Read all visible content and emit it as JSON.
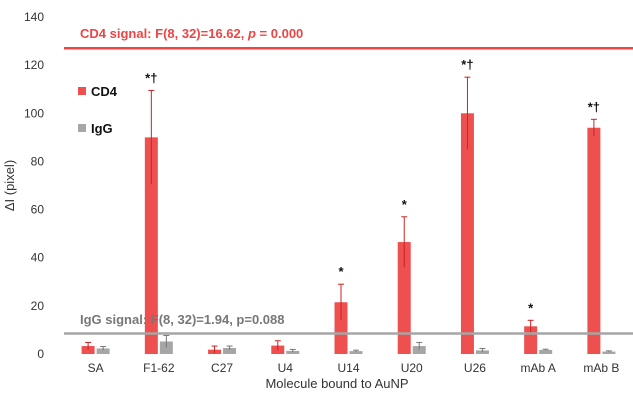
{
  "chart_data": {
    "type": "bar",
    "xlabel": "Molecule bound to AuNP",
    "ylabel": "ΔI (pixel)",
    "ylim": [
      0,
      140
    ],
    "yticks": [
      0,
      20,
      40,
      60,
      80,
      100,
      120,
      140
    ],
    "grid": false,
    "legend_position": "left",
    "categories": [
      "SA",
      "F1-62",
      "C27",
      "U4",
      "U14",
      "U20",
      "U26",
      "mAb A",
      "mAb B"
    ],
    "series": [
      {
        "name": "CD4",
        "color": "#ee5050",
        "values": [
          3.3,
          90,
          1.8,
          3.5,
          21.5,
          46.5,
          100,
          11.5,
          94
        ],
        "errors": [
          1.5,
          19.5,
          1.5,
          2,
          7.5,
          10.5,
          15,
          2.5,
          3.5
        ],
        "annotations": [
          "",
          "*†",
          "",
          "",
          "*",
          "*",
          "*†",
          "*",
          "*†"
        ]
      },
      {
        "name": "IgG",
        "color": "#a6a6a6",
        "values": [
          2.3,
          5.2,
          2.5,
          1.3,
          1.2,
          3.3,
          1.5,
          1.7,
          1.0
        ],
        "errors": [
          0.8,
          2.5,
          0.8,
          0.6,
          0.4,
          1.5,
          0.8,
          0.3,
          0.3
        ],
        "annotations": [
          "",
          "",
          "",
          "",
          "",
          "",
          "",
          "",
          ""
        ]
      }
    ],
    "reference_lines": [
      {
        "series": "CD4",
        "value": 127,
        "color": "#ee4444",
        "label": "CD4 signal: F(8, 32)=16.62, p = 0.000"
      },
      {
        "series": "IgG",
        "value": 8.5,
        "color": "#a6a6a6",
        "label": "IgG signal: F(8, 32)=1.94, p=0.088"
      }
    ]
  },
  "labels": {
    "cd4_sig_prefix": "CD4 signal: F(8, 32)=16.62, ",
    "cd4_sig_p": "p",
    "cd4_sig_suffix": " = 0.000",
    "igg_sig": "IgG signal: F(8, 32)=1.94, p=0.088"
  }
}
